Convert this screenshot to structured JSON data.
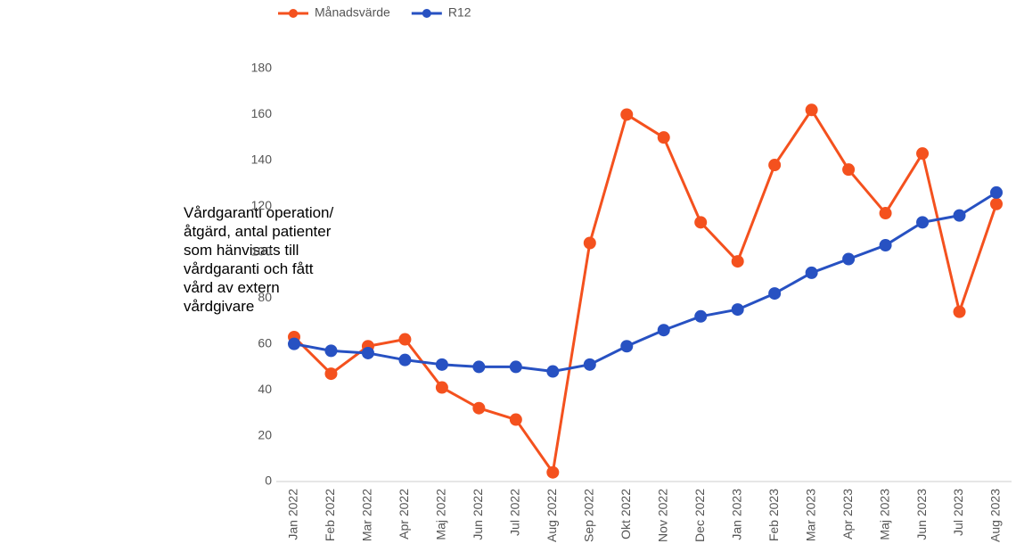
{
  "chart_data": {
    "type": "line",
    "y_label": "Vårdgaranti operation/åtgärd, antal patienter som hänvisats till vårdgaranti och fått vård av extern vårdgivare",
    "categories": [
      "Jan 2022",
      "Feb 2022",
      "Mar 2022",
      "Apr 2022",
      "Maj 2022",
      "Jun 2022",
      "Jul 2022",
      "Aug 2022",
      "Sep 2022",
      "Okt 2022",
      "Nov 2022",
      "Dec 2022",
      "Jan 2023",
      "Feb 2023",
      "Mar 2023",
      "Apr 2023",
      "Maj 2023",
      "Jun 2023",
      "Jul 2023",
      "Aug 2023"
    ],
    "series": [
      {
        "name": "Månadsvärde",
        "color": "#f4511e",
        "values": [
          63,
          47,
          59,
          62,
          41,
          32,
          27,
          4,
          104,
          160,
          150,
          113,
          96,
          138,
          162,
          136,
          117,
          143,
          74,
          121
        ]
      },
      {
        "name": "R12",
        "color": "#2751c2",
        "values": [
          60,
          57,
          56,
          53,
          51,
          50,
          50,
          48,
          51,
          59,
          66,
          72,
          75,
          82,
          91,
          97,
          103,
          113,
          116,
          126
        ]
      }
    ],
    "ylim": [
      0,
      180
    ],
    "yticks": [
      0,
      20,
      40,
      60,
      80,
      100,
      120,
      140,
      160,
      180
    ],
    "grid": false,
    "legend": "top"
  }
}
